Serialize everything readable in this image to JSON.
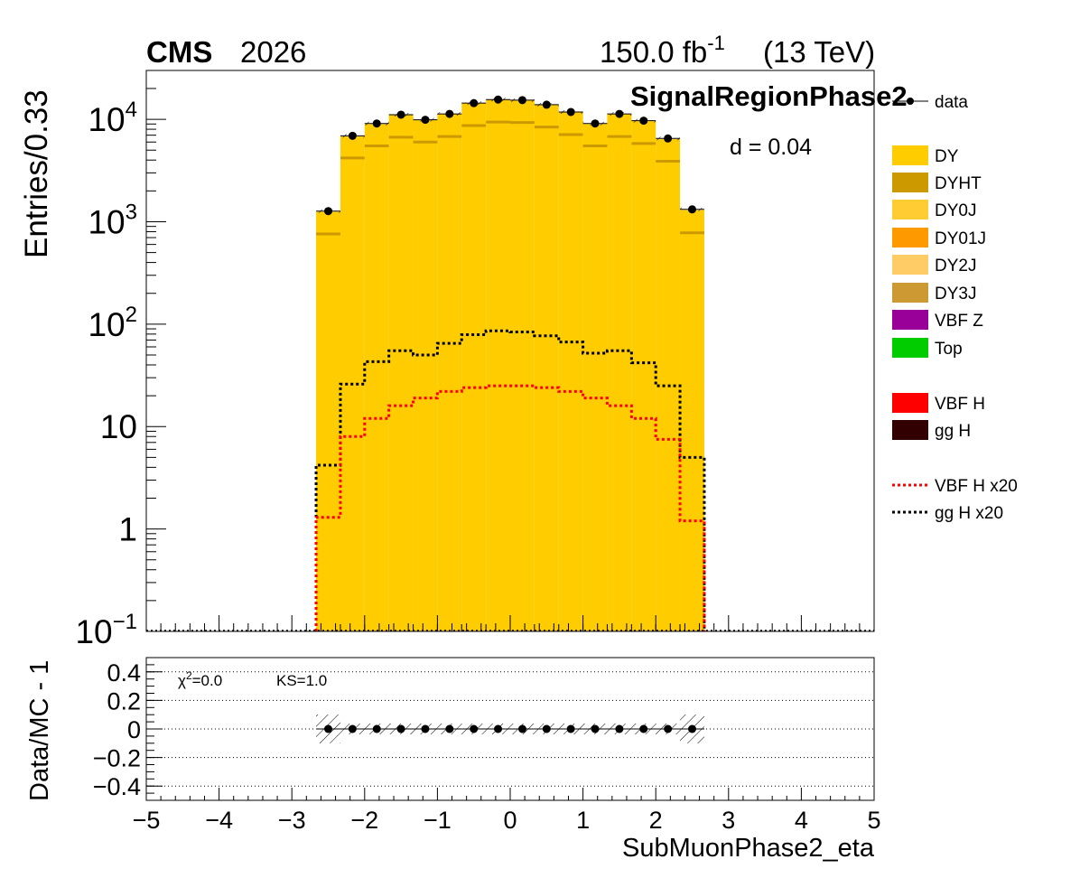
{
  "header": {
    "experiment": "CMS",
    "period": "2026",
    "lumi": "150.0 fb",
    "lumi_exp": "-1",
    "energy": "(13 TeV)",
    "region": "SignalRegionPhase2",
    "dval": "d = 0.04"
  },
  "ratio_text": {
    "chi2_label": "χ",
    "chi2_exp": "2",
    "chi2_value": "=0.0",
    "ks": "KS=1.0"
  },
  "legend": [
    {
      "label": "data",
      "kind": "marker",
      "color": "#000000"
    },
    {
      "label": "DY",
      "kind": "fill",
      "color": "#FFCC00"
    },
    {
      "label": "DYHT",
      "kind": "fill",
      "color": "#CC9900"
    },
    {
      "label": "DY0J",
      "kind": "fill",
      "color": "#FFCC33"
    },
    {
      "label": "DY01J",
      "kind": "fill",
      "color": "#FF9900"
    },
    {
      "label": "DY2J",
      "kind": "fill",
      "color": "#FFCC66"
    },
    {
      "label": "DY3J",
      "kind": "fill",
      "color": "#CC9933"
    },
    {
      "label": "VBF Z",
      "kind": "fill",
      "color": "#990099"
    },
    {
      "label": "Top",
      "kind": "fill",
      "color": "#00CC00"
    },
    {
      "label": "VBF H",
      "kind": "fill",
      "color": "#FF0000"
    },
    {
      "label": "gg H",
      "kind": "fill",
      "color": "#330000"
    },
    {
      "label": "VBF H x20",
      "kind": "dash",
      "color": "#FF0000"
    },
    {
      "label": "gg H x20",
      "kind": "dash",
      "color": "#000000"
    }
  ],
  "chart_data": [
    {
      "type": "bar",
      "title": "",
      "xlabel": "SubMuonPhase2_eta",
      "ylabel": "Entries/0.33",
      "log_y": true,
      "xlim": [
        -5,
        5
      ],
      "ylim": [
        0.1,
        30000
      ],
      "x_ticks": [
        "−5",
        "−4",
        "−3",
        "−2",
        "−1",
        "0",
        "1",
        "2",
        "3",
        "4",
        "5"
      ],
      "y_ticks": [
        "10^-1",
        "1",
        "10",
        "10^2",
        "10^3",
        "10^4"
      ],
      "bin_edges": [
        -2.667,
        -2.333,
        -2.0,
        -1.667,
        -1.333,
        -1.0,
        -0.667,
        -0.333,
        0.0,
        0.333,
        0.667,
        1.0,
        1.333,
        1.667,
        2.0,
        2.333,
        2.667
      ],
      "series": [
        {
          "name": "DY",
          "color": "#FFCC00",
          "values": [
            1250,
            6800,
            9000,
            11000,
            9800,
            11200,
            14300,
            15500,
            15300,
            13800,
            11700,
            9000,
            11200,
            9600,
            6400,
            1300
          ]
        },
        {
          "name": "DYHT",
          "color": "#CC9900",
          "values": [
            760,
            4200,
            5500,
            6700,
            6000,
            6800,
            8700,
            9400,
            9300,
            8400,
            7100,
            5500,
            6800,
            5800,
            3900,
            780
          ]
        },
        {
          "name": "data",
          "color": "#000000",
          "values": [
            1270,
            6900,
            9100,
            11100,
            9900,
            11300,
            14400,
            15600,
            15400,
            13900,
            11800,
            9100,
            11300,
            9700,
            6500,
            1320
          ]
        },
        {
          "name": "VBF H x20",
          "color": "#FF0000",
          "values": [
            1.3,
            8,
            12,
            16,
            19,
            22,
            24,
            25,
            25,
            24,
            22,
            19,
            16,
            12,
            7.5,
            1.2
          ]
        },
        {
          "name": "gg H x20",
          "color": "#000000",
          "values": [
            4.2,
            26,
            43,
            55,
            50,
            65,
            79,
            86,
            84,
            77,
            67,
            52,
            55,
            42,
            25,
            5
          ]
        }
      ]
    },
    {
      "type": "scatter",
      "title": "",
      "xlabel": "",
      "ylabel": "Data/MC - 1",
      "xlim": [
        -5,
        5
      ],
      "ylim": [
        -0.5,
        0.5
      ],
      "y_ticks": [
        "−0.4",
        "−0.2",
        "0",
        "0.2",
        "0.4"
      ],
      "x": [
        -2.5,
        -2.167,
        -1.833,
        -1.5,
        -1.167,
        -0.833,
        -0.5,
        -0.167,
        0.167,
        0.5,
        0.833,
        1.167,
        1.5,
        1.833,
        2.167,
        2.5
      ],
      "values": [
        0,
        0,
        0,
        0,
        0,
        0,
        0,
        0,
        0,
        0,
        0,
        0,
        0,
        0,
        0,
        0
      ]
    }
  ]
}
